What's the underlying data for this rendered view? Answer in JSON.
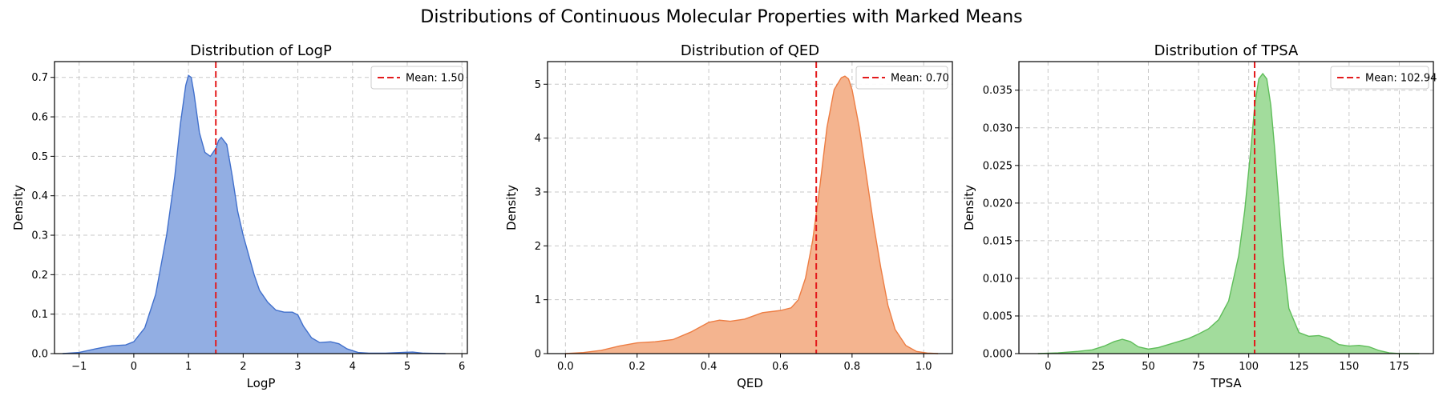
{
  "figure": {
    "suptitle": "Distributions of Continuous Molecular Properties with Marked Means"
  },
  "chart_data": [
    {
      "type": "area",
      "title": "Distribution of LogP",
      "xlabel": "LogP",
      "ylabel": "Density",
      "xlim": [
        -1.45,
        6.1
      ],
      "ylim": [
        0,
        0.74
      ],
      "xticks": [
        -1,
        0,
        1,
        2,
        3,
        4,
        5,
        6
      ],
      "xtick_labels": [
        "−1",
        "0",
        "1",
        "2",
        "3",
        "4",
        "5",
        "6"
      ],
      "yticks": [
        0.0,
        0.1,
        0.2,
        0.3,
        0.4,
        0.5,
        0.6,
        0.7
      ],
      "ytick_labels": [
        "0.0",
        "0.1",
        "0.2",
        "0.3",
        "0.4",
        "0.5",
        "0.6",
        "0.7"
      ],
      "grid": true,
      "legend_position": "top-right",
      "fill_color": "#92aee3",
      "line_color": "#4170cc",
      "mean": {
        "value": 1.5,
        "label": "Mean: 1.50",
        "color": "#e31a1c"
      },
      "x": [
        -1.3,
        -1.0,
        -0.7,
        -0.4,
        -0.15,
        0.0,
        0.2,
        0.4,
        0.6,
        0.75,
        0.85,
        0.95,
        1.0,
        1.05,
        1.1,
        1.2,
        1.3,
        1.4,
        1.5,
        1.55,
        1.6,
        1.7,
        1.8,
        1.9,
        2.0,
        2.1,
        2.2,
        2.3,
        2.45,
        2.6,
        2.75,
        2.9,
        3.0,
        3.1,
        3.25,
        3.4,
        3.6,
        3.75,
        3.9,
        4.1,
        4.3,
        4.6,
        4.9,
        5.1,
        5.3,
        5.7
      ],
      "y": [
        0.0,
        0.003,
        0.012,
        0.02,
        0.022,
        0.03,
        0.065,
        0.15,
        0.3,
        0.45,
        0.58,
        0.68,
        0.705,
        0.7,
        0.66,
        0.56,
        0.51,
        0.5,
        0.52,
        0.54,
        0.548,
        0.53,
        0.45,
        0.36,
        0.3,
        0.25,
        0.2,
        0.16,
        0.13,
        0.11,
        0.105,
        0.105,
        0.098,
        0.07,
        0.04,
        0.028,
        0.03,
        0.025,
        0.012,
        0.003,
        0.001,
        0.001,
        0.003,
        0.004,
        0.001,
        0.0
      ]
    },
    {
      "type": "area",
      "title": "Distribution of QED",
      "xlabel": "QED",
      "ylabel": "Density",
      "xlim": [
        -0.05,
        1.08
      ],
      "ylim": [
        0,
        5.42
      ],
      "xticks": [
        0.0,
        0.2,
        0.4,
        0.6,
        0.8,
        1.0
      ],
      "xtick_labels": [
        "0.0",
        "0.2",
        "0.4",
        "0.6",
        "0.8",
        "1.0"
      ],
      "yticks": [
        0,
        1,
        2,
        3,
        4,
        5
      ],
      "ytick_labels": [
        "0",
        "1",
        "2",
        "3",
        "4",
        "5"
      ],
      "grid": true,
      "legend_position": "top-right",
      "fill_color": "#f4b48f",
      "line_color": "#ed7d43",
      "mean": {
        "value": 0.7,
        "label": "Mean: 0.70",
        "color": "#e31a1c"
      },
      "x": [
        0.0,
        0.05,
        0.1,
        0.15,
        0.2,
        0.25,
        0.3,
        0.35,
        0.4,
        0.43,
        0.46,
        0.5,
        0.55,
        0.6,
        0.63,
        0.65,
        0.67,
        0.69,
        0.71,
        0.73,
        0.75,
        0.77,
        0.78,
        0.79,
        0.8,
        0.82,
        0.84,
        0.86,
        0.88,
        0.9,
        0.92,
        0.95,
        0.98,
        1.01,
        1.04
      ],
      "y": [
        0.0,
        0.02,
        0.06,
        0.14,
        0.2,
        0.22,
        0.26,
        0.4,
        0.58,
        0.62,
        0.6,
        0.64,
        0.76,
        0.8,
        0.85,
        1.0,
        1.4,
        2.1,
        3.1,
        4.2,
        4.9,
        5.12,
        5.15,
        5.1,
        4.9,
        4.2,
        3.3,
        2.4,
        1.6,
        0.9,
        0.45,
        0.15,
        0.04,
        0.01,
        0.0
      ]
    },
    {
      "type": "area",
      "title": "Distribution of TPSA",
      "xlabel": "TPSA",
      "ylabel": "Density",
      "xlim": [
        -14.5,
        192
      ],
      "ylim": [
        0,
        0.0388
      ],
      "xticks": [
        0,
        25,
        50,
        75,
        100,
        125,
        150,
        175
      ],
      "xtick_labels": [
        "0",
        "25",
        "50",
        "75",
        "100",
        "125",
        "150",
        "175"
      ],
      "yticks": [
        0.0,
        0.005,
        0.01,
        0.015,
        0.02,
        0.025,
        0.03,
        0.035
      ],
      "ytick_labels": [
        "0.000",
        "0.005",
        "0.010",
        "0.015",
        "0.020",
        "0.025",
        "0.030",
        "0.035"
      ],
      "grid": true,
      "legend_position": "top-right",
      "fill_color": "#a2dc9c",
      "line_color": "#5fbd5a",
      "mean": {
        "value": 102.94,
        "label": "Mean: 102.94",
        "color": "#e31a1c"
      },
      "x": [
        -5,
        5,
        15,
        22,
        28,
        33,
        37,
        41,
        45,
        50,
        55,
        60,
        65,
        70,
        75,
        80,
        85,
        90,
        95,
        98,
        101,
        103,
        105,
        107,
        109,
        111,
        113,
        115,
        117,
        120,
        125,
        130,
        135,
        140,
        145,
        150,
        155,
        160,
        165,
        170,
        175,
        185
      ],
      "y": [
        0.0,
        0.0001,
        0.0003,
        0.0005,
        0.001,
        0.0016,
        0.0019,
        0.0016,
        0.0009,
        0.0006,
        0.0008,
        0.0012,
        0.0016,
        0.002,
        0.0026,
        0.0033,
        0.0045,
        0.007,
        0.013,
        0.019,
        0.027,
        0.033,
        0.0365,
        0.0372,
        0.0365,
        0.033,
        0.027,
        0.02,
        0.013,
        0.006,
        0.0028,
        0.0023,
        0.0024,
        0.002,
        0.0012,
        0.001,
        0.0011,
        0.0009,
        0.0004,
        0.0001,
        0.0,
        0.0
      ]
    }
  ]
}
